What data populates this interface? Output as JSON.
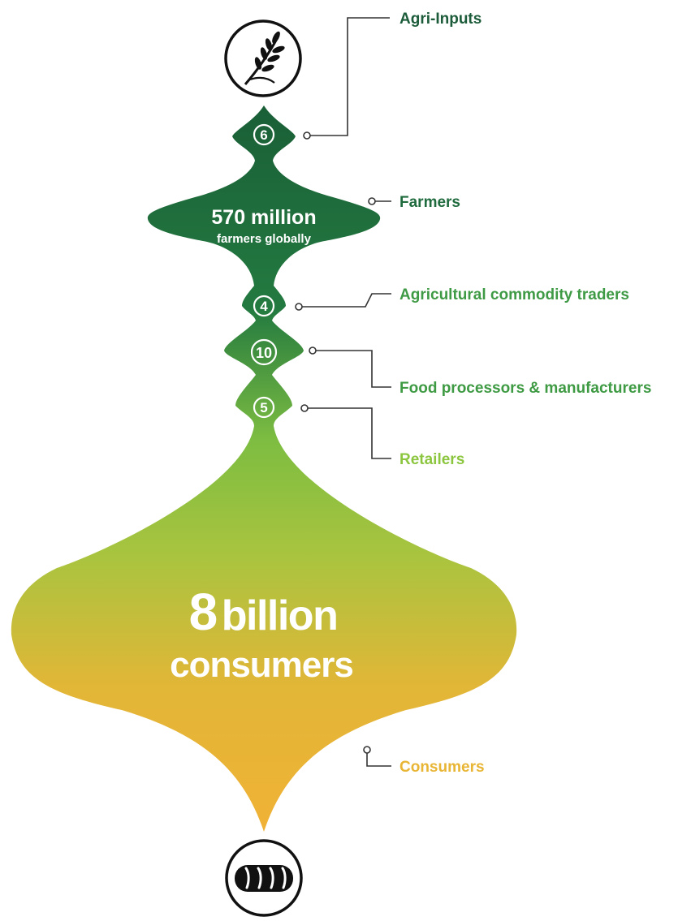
{
  "colors": {
    "agri_inputs": "#1d5c3a",
    "farmers": "#1f6b3e",
    "traders": "#3f9a45",
    "processors": "#3e9a43",
    "retailers": "#8cc63f",
    "consumers": "#e8b534",
    "gradient_top": "#1b6b3d",
    "gradient_mid": "#8cc540",
    "gradient_bottom": "#edb236"
  },
  "icons": {
    "top": "wheat-icon",
    "bottom": "bread-icon"
  },
  "stages": [
    {
      "id": "agri_inputs",
      "label": "Agri-Inputs",
      "count": "6"
    },
    {
      "id": "farmers",
      "label": "Farmers",
      "headline": "570 million",
      "subline": "farmers globally"
    },
    {
      "id": "traders",
      "label": "Agricultural commodity traders",
      "count": "4"
    },
    {
      "id": "processors",
      "label": "Food processors & manufacturers",
      "count": "10"
    },
    {
      "id": "retailers",
      "label": "Retailers",
      "count": "5"
    },
    {
      "id": "consumers",
      "label": "Consumers",
      "headline_number": "8",
      "headline_word": "billion",
      "subline": "consumers"
    }
  ]
}
